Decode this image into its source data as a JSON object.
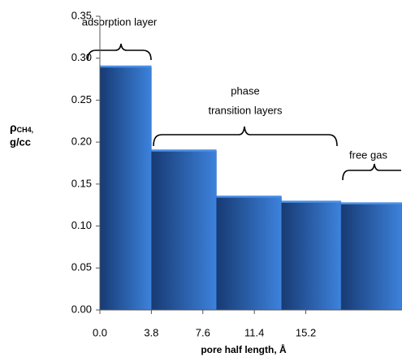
{
  "chart_data": {
    "type": "histogram",
    "bins": [
      0,
      3.8,
      8.6,
      13.4,
      17.8,
      22.3
    ],
    "values": [
      0.29,
      0.19,
      0.135,
      0.129,
      0.127
    ],
    "color": "#2d66bd",
    "xlim": [
      0,
      22.3
    ],
    "ylim": [
      0,
      0.35
    ],
    "xticks": [
      {
        "value": 0,
        "label": "0.0"
      },
      3.8,
      7.6,
      11.4,
      15.2
    ],
    "yticks": [
      {
        "value": 0,
        "label": "0.00"
      },
      0.05,
      {
        "value": 0.1,
        "label": "0.10"
      },
      0.15,
      {
        "value": 0.2,
        "label": "0.20"
      },
      0.25,
      {
        "value": 0.3,
        "label": "0.30"
      },
      0.35
    ],
    "xlabel": "pore half length, Å",
    "ylabel": {
      "symbol": "ρ",
      "subscript": "CH4,",
      "unit": "g/cc"
    },
    "annotations": [
      "adsorption layer",
      "phase",
      "transition layers",
      "free gas"
    ]
  }
}
